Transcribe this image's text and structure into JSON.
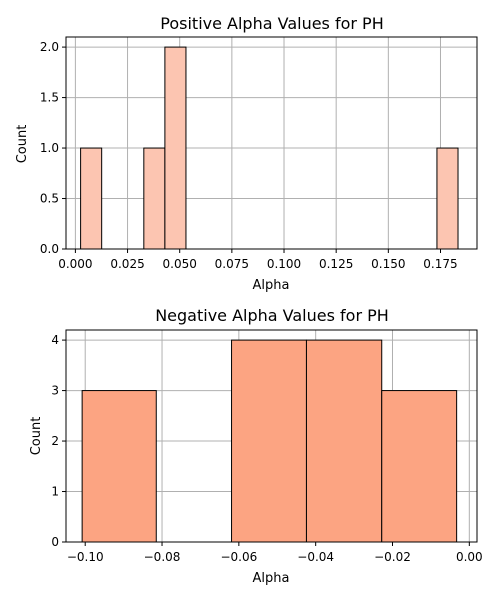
{
  "chart_data": [
    {
      "type": "bar",
      "title": "Positive Alpha Values for PH",
      "xlabel": "Alpha",
      "ylabel": "Count",
      "xlim": [
        -0.0045,
        0.1925
      ],
      "ylim": [
        0,
        2.1
      ],
      "xticks": [
        0.0,
        0.025,
        0.05,
        0.075,
        0.1,
        0.125,
        0.15,
        0.175
      ],
      "xtick_labels": [
        "0.000",
        "0.025",
        "0.050",
        "0.075",
        "0.100",
        "0.125",
        "0.150",
        "0.175"
      ],
      "yticks": [
        0.0,
        0.5,
        1.0,
        1.5,
        2.0
      ],
      "ytick_labels": [
        "0.0",
        "0.5",
        "1.0",
        "1.5",
        "2.0"
      ],
      "grid": true,
      "bar_color": "#fcc5b1",
      "edge_color": "#000000",
      "bins": [
        {
          "x0": 0.0025,
          "x1": 0.0126,
          "count": 1
        },
        {
          "x0": 0.0328,
          "x1": 0.0429,
          "count": 1
        },
        {
          "x0": 0.0429,
          "x1": 0.053,
          "count": 2
        },
        {
          "x0": 0.1733,
          "x1": 0.1834,
          "count": 1
        }
      ]
    },
    {
      "type": "bar",
      "title": "Negative Alpha Values for PH",
      "xlabel": "Alpha",
      "ylabel": "Count",
      "xlim": [
        -0.105,
        0.002
      ],
      "ylim": [
        0,
        4.2
      ],
      "xticks": [
        -0.1,
        -0.08,
        -0.06,
        -0.04,
        -0.02,
        0.0
      ],
      "xtick_labels": [
        "−0.10",
        "−0.08",
        "−0.06",
        "−0.04",
        "−0.02",
        "0.00"
      ],
      "yticks": [
        0,
        1,
        2,
        3,
        4
      ],
      "ytick_labels": [
        "0",
        "1",
        "2",
        "3",
        "4"
      ],
      "grid": true,
      "bar_color": "#fca482",
      "edge_color": "#000000",
      "bins": [
        {
          "x0": -0.1008,
          "x1": -0.0815,
          "count": 3
        },
        {
          "x0": -0.0815,
          "x1": -0.0619,
          "count": 0
        },
        {
          "x0": -0.0619,
          "x1": -0.0424,
          "count": 4
        },
        {
          "x0": -0.0424,
          "x1": -0.0228,
          "count": 4
        },
        {
          "x0": -0.0228,
          "x1": -0.0033,
          "count": 3
        }
      ]
    }
  ]
}
